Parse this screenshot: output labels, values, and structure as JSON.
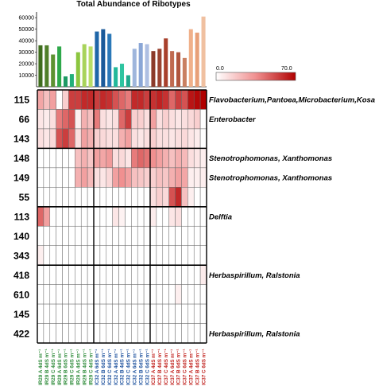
{
  "chart_data": [
    {
      "type": "bar",
      "title": "Total Abundance of Ribotypes",
      "categories": [
        "IR29 A 4dS m⁻¹",
        "IR29 B 4dS m⁻¹",
        "IR29 C 4dS m⁻¹",
        "IR29 A 6dS m⁻¹",
        "IR29 B 6dS m⁻¹",
        "IR29 C 6dS m⁻¹",
        "IR29 A 4dS m⁻¹",
        "IR29 B 4dS m⁻¹",
        "IR29 C 4dS m⁻¹",
        "IC32 A 6dS m⁻¹",
        "IC32 B 6dS m⁻¹",
        "IC32 C 6dS m⁻¹",
        "IC32 A 4dS m⁻¹",
        "IC32 B 4dS m⁻¹",
        "IC32 C 4dS m⁻¹",
        "IC32 A 6dS m⁻¹",
        "IC32 B 6dS m⁻¹",
        "IC32 C 6dS m⁻¹",
        "IC37 A 4dS m⁻¹",
        "IC37 B 4dS m⁻¹",
        "IC37 C 4dS m⁻¹",
        "IC37 A 6dS m⁻¹",
        "IC37 B 6dS m⁻¹",
        "IC37 C 6dS m⁻¹",
        "IC37 A 4dS m⁻¹",
        "IC37 B 4dS m⁻¹",
        "IC37 C 6dS m⁻¹"
      ],
      "values": [
        36000,
        36000,
        28000,
        35000,
        9000,
        11000,
        30000,
        37000,
        35000,
        48000,
        50000,
        46000,
        17000,
        20000,
        10000,
        33000,
        38000,
        37000,
        31000,
        33000,
        42000,
        31000,
        30000,
        25000,
        50000,
        47000,
        61000
      ],
      "colors": [
        "#3f6d1e",
        "#4f7f2a",
        "#5d9231",
        "#2ea84a",
        "#1d9a63",
        "#22b07a",
        "#8cc63f",
        "#a8d35a",
        "#b8dd66",
        "#1f66a8",
        "#1a5a9a",
        "#2b78b8",
        "#22b89a",
        "#2ec4a0",
        "#1fa88c",
        "#9fb6dc",
        "#8aa6d6",
        "#aebfe2",
        "#8b3a2a",
        "#9a4331",
        "#a8402c",
        "#c06a50",
        "#b0563e",
        "#c98062",
        "#f0b08a",
        "#e8a078",
        "#f0c0a0"
      ],
      "yticks": [
        10000,
        20000,
        30000,
        40000,
        50000,
        60000
      ],
      "ylim": [
        0,
        65000
      ]
    },
    {
      "type": "heatmap",
      "rows": [
        "115",
        "66",
        "143",
        "148",
        "149",
        "55",
        "113",
        "140",
        "343",
        "418",
        "610",
        "145",
        "422"
      ],
      "annotations": [
        {
          "row": "115",
          "text": "Flavobacterium,Pantoea,Microbacterium,Kosakonia,Pseudomonas"
        },
        {
          "row": "66",
          "text": "Enterobacter"
        },
        {
          "row": "148",
          "text": "Stenotrophomonas, Xanthomonas"
        },
        {
          "row": "149",
          "text": "Stenotrophomonas, Xanthomonas"
        },
        {
          "row": "113",
          "text": "Delftia"
        },
        {
          "row": "418",
          "text": "Herbaspirillum, Ralstonia"
        },
        {
          "row": "422",
          "text": "Herbaspirillum, Ralstonia"
        }
      ],
      "color_scale": {
        "min": 0.0,
        "max": 70.0,
        "min_label": "0.0",
        "max_label": "70.0",
        "low_color": "#ffffff",
        "high_color": "#b00000"
      },
      "values": [
        [
          28,
          20,
          30,
          0,
          15,
          55,
          55,
          60,
          60,
          55,
          60,
          58,
          50,
          45,
          40,
          60,
          60,
          55,
          58,
          62,
          58,
          45,
          55,
          50,
          65,
          68,
          70
        ],
        [
          8,
          6,
          10,
          40,
          45,
          50,
          5,
          25,
          20,
          40,
          10,
          8,
          10,
          45,
          55,
          15,
          15,
          10,
          30,
          10,
          15,
          10,
          8,
          10,
          12,
          15,
          0
        ],
        [
          10,
          8,
          12,
          50,
          55,
          45,
          10,
          30,
          25,
          15,
          12,
          10,
          10,
          25,
          30,
          10,
          8,
          10,
          15,
          10,
          10,
          8,
          10,
          12,
          8,
          6,
          0
        ],
        [
          0,
          0,
          0,
          0,
          0,
          0,
          20,
          25,
          18,
          30,
          28,
          32,
          10,
          12,
          8,
          40,
          45,
          42,
          35,
          30,
          25,
          20,
          25,
          22,
          10,
          8,
          5
        ],
        [
          0,
          0,
          0,
          0,
          0,
          0,
          25,
          30,
          22,
          10,
          8,
          12,
          30,
          35,
          30,
          20,
          18,
          15,
          15,
          20,
          18,
          25,
          30,
          28,
          5,
          5,
          5
        ],
        [
          0,
          0,
          0,
          0,
          0,
          0,
          0,
          0,
          0,
          0,
          0,
          0,
          0,
          0,
          0,
          0,
          0,
          0,
          10,
          15,
          12,
          50,
          60,
          20,
          5,
          0,
          0
        ],
        [
          45,
          30,
          0,
          0,
          0,
          0,
          0,
          0,
          0,
          0,
          0,
          0,
          8,
          4,
          0,
          0,
          0,
          0,
          6,
          0,
          0,
          8,
          10,
          0,
          0,
          0,
          0
        ],
        [
          0,
          0,
          0,
          0,
          0,
          0,
          0,
          0,
          0,
          0,
          0,
          0,
          0,
          0,
          0,
          0,
          0,
          0,
          0,
          0,
          0,
          0,
          0,
          0,
          0,
          0,
          0
        ],
        [
          5,
          0,
          0,
          0,
          0,
          0,
          0,
          0,
          0,
          0,
          0,
          0,
          0,
          0,
          0,
          0,
          0,
          0,
          0,
          0,
          0,
          0,
          0,
          0,
          0,
          0,
          0
        ],
        [
          0,
          0,
          0,
          0,
          0,
          0,
          0,
          0,
          0,
          0,
          0,
          0,
          0,
          0,
          0,
          0,
          0,
          0,
          0,
          0,
          0,
          0,
          0,
          0,
          0,
          0,
          6
        ],
        [
          0,
          0,
          0,
          0,
          0,
          0,
          0,
          0,
          0,
          0,
          0,
          0,
          0,
          0,
          0,
          0,
          0,
          0,
          0,
          0,
          0,
          0,
          5,
          0,
          0,
          0,
          0
        ],
        [
          0,
          0,
          0,
          0,
          0,
          0,
          0,
          0,
          0,
          0,
          0,
          0,
          0,
          0,
          0,
          0,
          0,
          0,
          0,
          0,
          0,
          0,
          0,
          0,
          0,
          0,
          0
        ],
        [
          0,
          0,
          0,
          0,
          0,
          0,
          0,
          0,
          0,
          0,
          0,
          0,
          0,
          0,
          0,
          0,
          0,
          0,
          0,
          0,
          0,
          0,
          0,
          0,
          0,
          0,
          0
        ]
      ],
      "columns": [
        "IR29 A 4dS m⁻¹",
        "IR29 B 4dS m⁻¹",
        "IR29 C 4dS m⁻¹",
        "IR29 A 6dS m⁻¹",
        "IR29 B 6dS m⁻¹",
        "IR29 C 6dS m⁻¹",
        "IR29 A 4dS m⁻¹",
        "IR29 B 4dS m⁻¹",
        "IR29 C 4dS m⁻¹",
        "IC32 A 6dS m⁻¹",
        "IC32 B 6dS m⁻¹",
        "IC32 C 6dS m⁻¹",
        "IC32 A 4dS m⁻¹",
        "IC32 B 4dS m⁻¹",
        "IC32 C 4dS m⁻¹",
        "IC32 A 6dS m⁻¹",
        "IC32 B 6dS m⁻¹",
        "IC32 C 6dS m⁻¹",
        "IC37 A 4dS m⁻¹",
        "IC37 B 4dS m⁻¹",
        "IC37 C 4dS m⁻¹",
        "IC37 A 6dS m⁻¹",
        "IC37 B 6dS m⁻¹",
        "IC37 C 6dS m⁻¹",
        "IC37 A 4dS m⁻¹",
        "IC37 B 4dS m⁻¹",
        "IC37 C 6dS m⁻¹"
      ],
      "column_label_colors": [
        "#2e8b3a",
        "#2e8b3a",
        "#2e8b3a",
        "#2e8b3a",
        "#2e8b3a",
        "#2e8b3a",
        "#2e8b3a",
        "#2e8b3a",
        "#2e8b3a",
        "#1a4f9c",
        "#1a4f9c",
        "#1a4f9c",
        "#1a4f9c",
        "#1a4f9c",
        "#1a4f9c",
        "#1a4f9c",
        "#1a4f9c",
        "#1a4f9c",
        "#c0201c",
        "#c0201c",
        "#c0201c",
        "#c0201c",
        "#c0201c",
        "#c0201c",
        "#c0201c",
        "#c0201c",
        "#c0201c"
      ]
    }
  ]
}
